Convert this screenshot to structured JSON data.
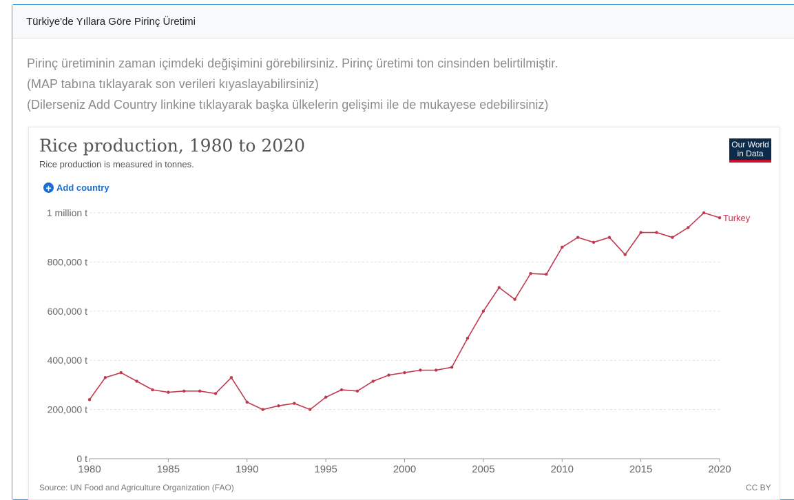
{
  "header": {
    "title": "Türkiye'de Yıllara Göre Pirinç Üretimi"
  },
  "description": [
    "Pirinç üretiminin zaman içimdeki değişimini görebilirsiniz. Pirinç üretimi ton cinsinden belirtilmiştir.",
    "(MAP tabına tıklayarak son verileri kıyaslayabilirsiniz)",
    "(Dilerseniz Add Country linkine tıklayarak başka ülkelerin gelişimi ile de mukayese edebilirsiniz)"
  ],
  "widget": {
    "add_country_label": "Add country",
    "add_icon": "plus-circle-icon",
    "logo_line1": "Our World",
    "logo_line2": "in Data",
    "source": "Source: UN Food and Agriculture Organization (FAO)",
    "license": "CC BY"
  },
  "colors": {
    "series": "#c0394f",
    "link": "#1a6fd1",
    "border": "#3aa3d6"
  },
  "chart_data": {
    "type": "line",
    "title": "Rice production, 1980 to 2020",
    "subtitle": "Rice production is measured in tonnes.",
    "xlabel": "",
    "ylabel": "",
    "xlim": [
      1980,
      2020
    ],
    "ylim": [
      0,
      1000000
    ],
    "x_ticks": [
      1980,
      1985,
      1990,
      1995,
      2000,
      2005,
      2010,
      2015,
      2020
    ],
    "y_ticks": [
      {
        "value": 0,
        "label": "0 t"
      },
      {
        "value": 200000,
        "label": "200,000 t"
      },
      {
        "value": 400000,
        "label": "400,000 t"
      },
      {
        "value": 600000,
        "label": "600,000 t"
      },
      {
        "value": 800000,
        "label": "800,000 t"
      },
      {
        "value": 1000000,
        "label": "1 million t"
      }
    ],
    "grid": true,
    "series": [
      {
        "name": "Turkey",
        "x": [
          1980,
          1981,
          1982,
          1983,
          1984,
          1985,
          1986,
          1987,
          1988,
          1989,
          1990,
          1991,
          1992,
          1993,
          1994,
          1995,
          1996,
          1997,
          1998,
          1999,
          2000,
          2001,
          2002,
          2003,
          2004,
          2005,
          2006,
          2007,
          2008,
          2009,
          2010,
          2011,
          2012,
          2013,
          2014,
          2015,
          2016,
          2017,
          2018,
          2019,
          2020
        ],
        "y": [
          240000,
          330000,
          350000,
          315000,
          280000,
          270000,
          275000,
          275000,
          265000,
          330000,
          230000,
          200000,
          215000,
          225000,
          200000,
          250000,
          280000,
          275000,
          315000,
          340000,
          350000,
          360000,
          360000,
          372000,
          490000,
          600000,
          696000,
          648000,
          753000,
          750000,
          860000,
          900000,
          880000,
          900000,
          830000,
          920000,
          920000,
          900000,
          940000,
          1000000,
          980000
        ]
      }
    ]
  }
}
